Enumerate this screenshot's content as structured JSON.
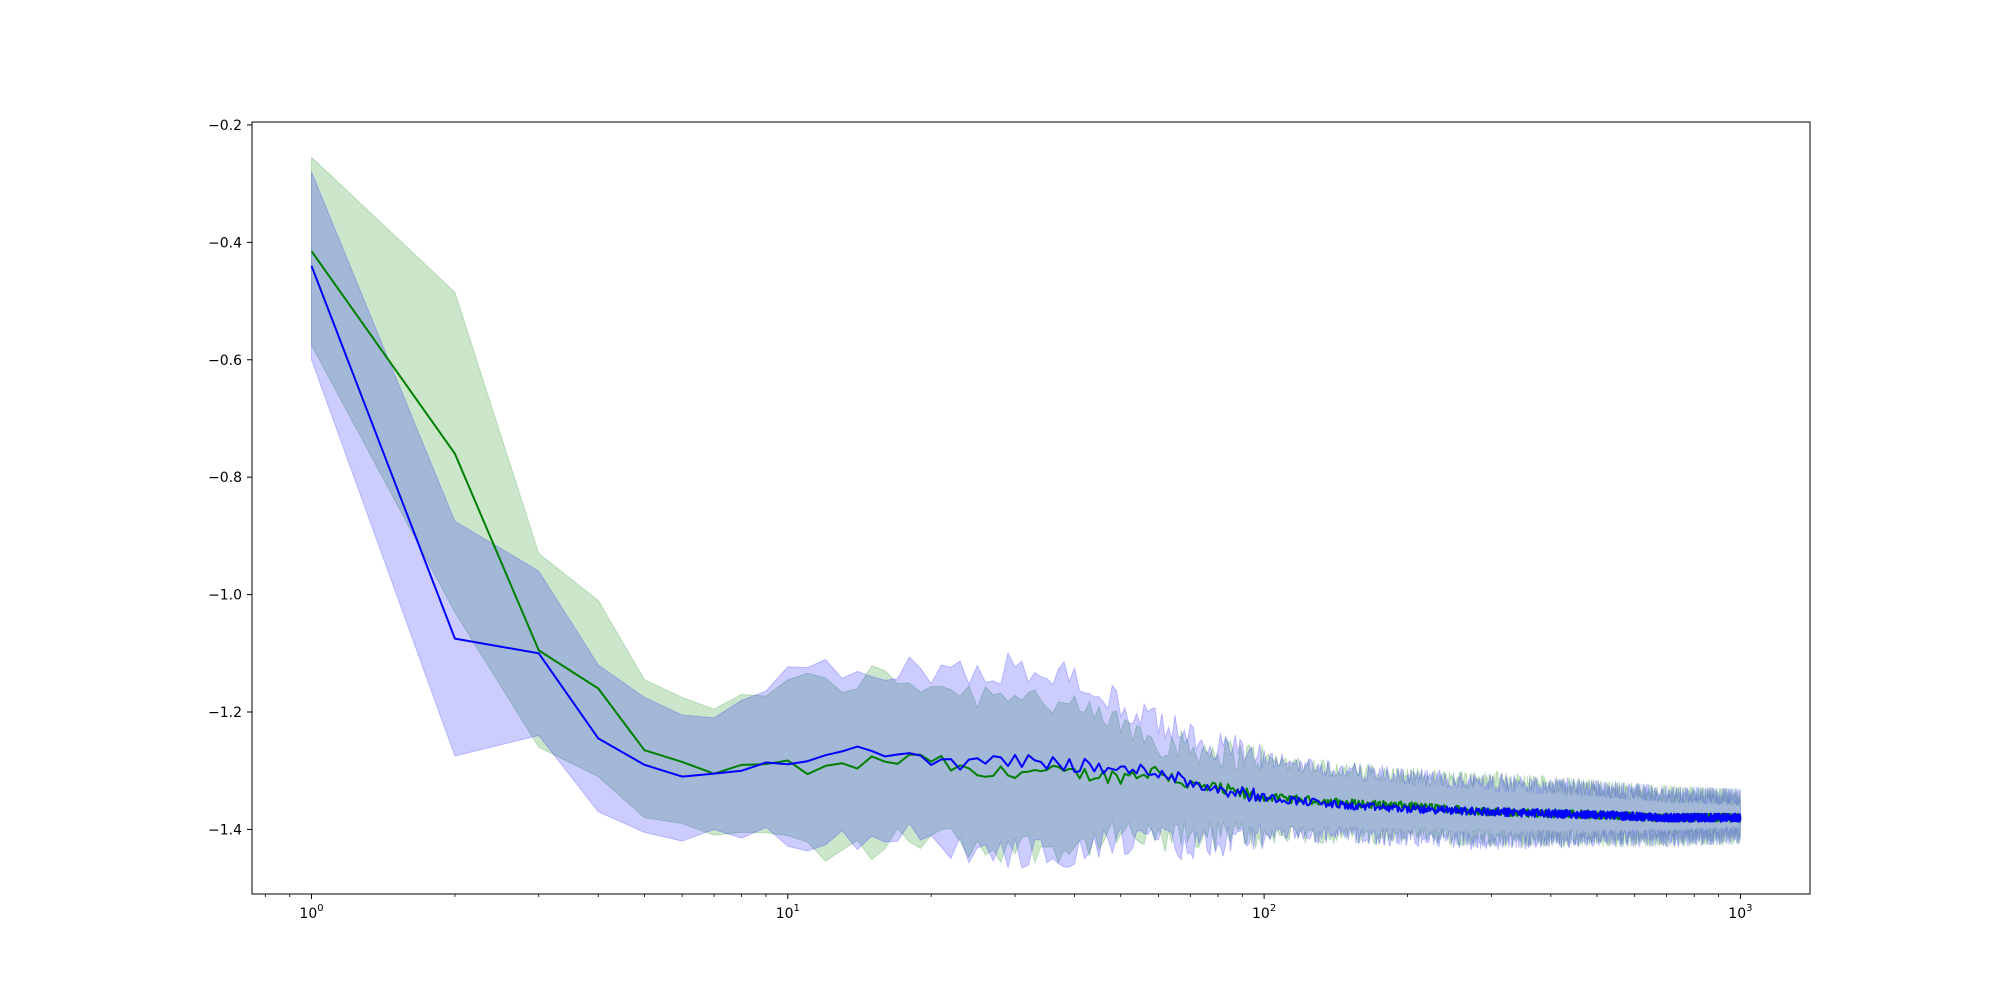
{
  "chart_data": {
    "type": "line",
    "title": "",
    "xlabel": "",
    "ylabel": "",
    "xscale": "log",
    "xlim": [
      0.75,
      1400
    ],
    "ylim": [
      -1.51,
      -0.195
    ],
    "grid": false,
    "legend": "none",
    "x_tick_labels": [
      {
        "base": "10",
        "exp": "0",
        "value": 1
      },
      {
        "base": "10",
        "exp": "1",
        "value": 10
      },
      {
        "base": "10",
        "exp": "2",
        "value": 100
      },
      {
        "base": "10",
        "exp": "3",
        "value": 1000
      }
    ],
    "y_tick_labels": [
      {
        "label": "−0.2",
        "value": -0.2
      },
      {
        "label": "−0.4",
        "value": -0.4
      },
      {
        "label": "−0.6",
        "value": -0.6
      },
      {
        "label": "−0.8",
        "value": -0.8
      },
      {
        "label": "−1.0",
        "value": -1.0
      },
      {
        "label": "−1.2",
        "value": -1.2
      },
      {
        "label": "−1.4",
        "value": -1.4
      }
    ],
    "series": [
      {
        "color": "#008000",
        "band_color": "#008000",
        "band_alpha": 0.2,
        "anchors": [
          {
            "x": 1,
            "mean": -0.415,
            "upper": -0.255,
            "lower": -0.575
          },
          {
            "x": 2,
            "mean": -0.76,
            "upper": -0.485,
            "lower": -1.03
          },
          {
            "x": 3,
            "mean": -1.095,
            "upper": -0.93,
            "lower": -1.26
          },
          {
            "x": 4,
            "mean": -1.16,
            "upper": -1.01,
            "lower": -1.31
          },
          {
            "x": 5,
            "mean": -1.265,
            "upper": -1.145,
            "lower": -1.38
          },
          {
            "x": 6,
            "mean": -1.285,
            "upper": -1.175,
            "lower": -1.39
          },
          {
            "x": 7,
            "mean": -1.305,
            "upper": -1.195,
            "lower": -1.41
          },
          {
            "x": 8,
            "mean": -1.29,
            "upper": -1.17,
            "lower": -1.405
          },
          {
            "x": 10,
            "mean": -1.295,
            "upper": -1.155,
            "lower": -1.42
          },
          {
            "x": 12,
            "mean": -1.3,
            "upper": -1.155,
            "lower": -1.445
          },
          {
            "x": 15,
            "mean": -1.285,
            "upper": -1.14,
            "lower": -1.43
          },
          {
            "x": 20,
            "mean": -1.28,
            "upper": -1.15,
            "lower": -1.41
          },
          {
            "x": 25,
            "mean": -1.31,
            "upper": -1.17,
            "lower": -1.43
          },
          {
            "x": 30,
            "mean": -1.3,
            "upper": -1.16,
            "lower": -1.43
          },
          {
            "x": 40,
            "mean": -1.305,
            "upper": -1.2,
            "lower": -1.43
          },
          {
            "x": 50,
            "mean": -1.31,
            "upper": -1.22,
            "lower": -1.41
          },
          {
            "x": 60,
            "mean": -1.3,
            "upper": -1.25,
            "lower": -1.42
          },
          {
            "x": 70,
            "mean": -1.325,
            "upper": -1.26,
            "lower": -1.41
          },
          {
            "x": 100,
            "mean": -1.345,
            "upper": -1.28,
            "lower": -1.41
          },
          {
            "x": 150,
            "mean": -1.355,
            "upper": -1.3,
            "lower": -1.41
          },
          {
            "x": 200,
            "mean": -1.36,
            "upper": -1.31,
            "lower": -1.41
          },
          {
            "x": 300,
            "mean": -1.37,
            "upper": -1.315,
            "lower": -1.415
          },
          {
            "x": 500,
            "mean": -1.375,
            "upper": -1.33,
            "lower": -1.415
          },
          {
            "x": 700,
            "mean": -1.38,
            "upper": -1.34,
            "lower": -1.415
          },
          {
            "x": 1000,
            "mean": -1.38,
            "upper": -1.345,
            "lower": -1.41
          }
        ]
      },
      {
        "color": "#0000ff",
        "band_color": "#0000ff",
        "band_alpha": 0.2,
        "anchors": [
          {
            "x": 1,
            "mean": -0.44,
            "upper": -0.28,
            "lower": -0.6
          },
          {
            "x": 2,
            "mean": -1.075,
            "upper": -0.875,
            "lower": -1.275
          },
          {
            "x": 3,
            "mean": -1.1,
            "upper": -0.96,
            "lower": -1.24
          },
          {
            "x": 4,
            "mean": -1.245,
            "upper": -1.12,
            "lower": -1.37
          },
          {
            "x": 5,
            "mean": -1.29,
            "upper": -1.175,
            "lower": -1.405
          },
          {
            "x": 6,
            "mean": -1.31,
            "upper": -1.205,
            "lower": -1.42
          },
          {
            "x": 7,
            "mean": -1.305,
            "upper": -1.21,
            "lower": -1.4
          },
          {
            "x": 8,
            "mean": -1.3,
            "upper": -1.18,
            "lower": -1.415
          },
          {
            "x": 10,
            "mean": -1.285,
            "upper": -1.14,
            "lower": -1.43
          },
          {
            "x": 12,
            "mean": -1.28,
            "upper": -1.135,
            "lower": -1.425
          },
          {
            "x": 15,
            "mean": -1.265,
            "upper": -1.13,
            "lower": -1.4
          },
          {
            "x": 20,
            "mean": -1.28,
            "upper": -1.13,
            "lower": -1.42
          },
          {
            "x": 25,
            "mean": -1.29,
            "upper": -1.14,
            "lower": -1.44
          },
          {
            "x": 30,
            "mean": -1.28,
            "upper": -1.12,
            "lower": -1.44
          },
          {
            "x": 40,
            "mean": -1.29,
            "upper": -1.14,
            "lower": -1.44
          },
          {
            "x": 50,
            "mean": -1.3,
            "upper": -1.19,
            "lower": -1.42
          },
          {
            "x": 60,
            "mean": -1.3,
            "upper": -1.22,
            "lower": -1.42
          },
          {
            "x": 70,
            "mean": -1.32,
            "upper": -1.24,
            "lower": -1.43
          },
          {
            "x": 100,
            "mean": -1.345,
            "upper": -1.28,
            "lower": -1.41
          },
          {
            "x": 150,
            "mean": -1.36,
            "upper": -1.3,
            "lower": -1.41
          },
          {
            "x": 200,
            "mean": -1.365,
            "upper": -1.31,
            "lower": -1.415
          },
          {
            "x": 300,
            "mean": -1.37,
            "upper": -1.32,
            "lower": -1.42
          },
          {
            "x": 500,
            "mean": -1.375,
            "upper": -1.33,
            "lower": -1.415
          },
          {
            "x": 700,
            "mean": -1.38,
            "upper": -1.34,
            "lower": -1.415
          },
          {
            "x": 1000,
            "mean": -1.38,
            "upper": -1.345,
            "lower": -1.41
          }
        ]
      }
    ]
  }
}
